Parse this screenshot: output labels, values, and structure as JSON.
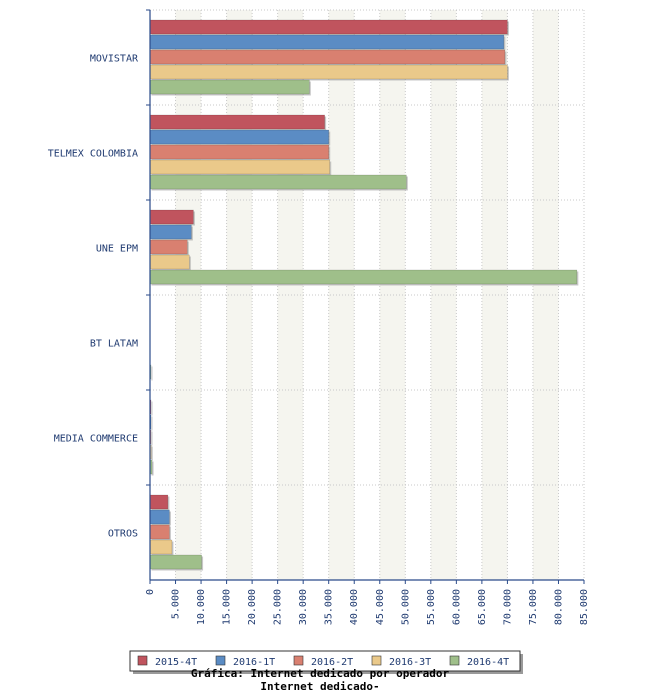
{
  "chart_data": {
    "type": "bar",
    "orientation": "horizontal",
    "title": "Internet dedicado-",
    "caption": "Gráfica: Internet dedicado por operador",
    "xlabel": "",
    "ylabel": "",
    "xlim": [
      0,
      85000
    ],
    "x_ticks": [
      "0",
      "5.000",
      "10.000",
      "15.000",
      "20.000",
      "25.000",
      "30.000",
      "35.000",
      "40.000",
      "45.000",
      "50.000",
      "55.000",
      "60.000",
      "65.000",
      "70.000",
      "75.000",
      "80.000",
      "85.000"
    ],
    "grid": true,
    "legend_position": "bottom",
    "categories": [
      "MOVISTAR",
      "TELMEX COLOMBIA",
      "UNE EPM",
      "BT LATAM",
      "MEDIA COMMERCE",
      "OTROS"
    ],
    "series": [
      {
        "name": "2015-4T",
        "color": "#c0545e",
        "values": [
          70000,
          34200,
          8500,
          0,
          100,
          3500
        ]
      },
      {
        "name": "2016-1T",
        "color": "#5b8cc4",
        "values": [
          69300,
          35000,
          8100,
          0,
          150,
          3800
        ]
      },
      {
        "name": "2016-2T",
        "color": "#d98070",
        "values": [
          69500,
          35000,
          7300,
          0,
          200,
          3800
        ]
      },
      {
        "name": "2016-3T",
        "color": "#eac98a",
        "values": [
          70000,
          35200,
          7700,
          0,
          250,
          4300
        ]
      },
      {
        "name": "2016-4T",
        "color": "#9fbf8a",
        "values": [
          31200,
          50200,
          83600,
          50,
          400,
          10100
        ]
      }
    ]
  }
}
